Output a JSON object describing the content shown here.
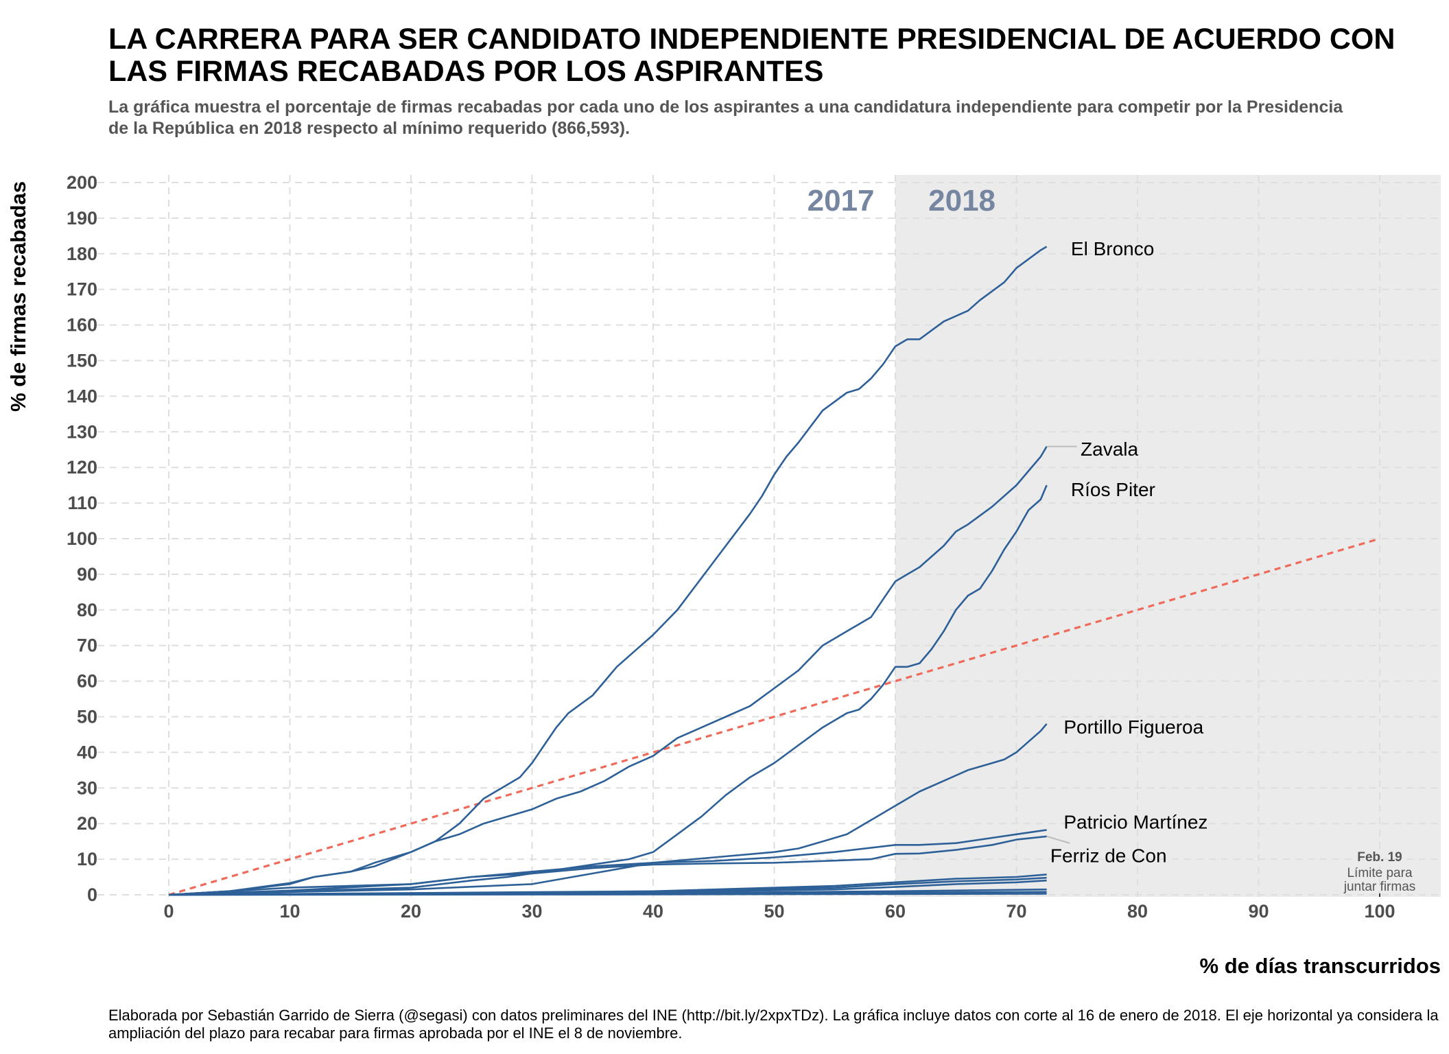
{
  "header": {
    "title": "LA CARRERA PARA SER CANDIDATO INDEPENDIENTE PRESIDENCIAL DE ACUERDO CON LAS FIRMAS RECABADAS POR LOS ASPIRANTES",
    "subtitle": "La gráfica muestra el porcentaje de firmas recabadas por cada uno de los aspirantes a una candidatura independiente para competir por la Presidencia de la República en 2018 respecto al mínimo requerido (866,593)."
  },
  "footer": {
    "caption": "Elaborada por Sebastián Garrido de Sierra (@segasi) con datos preliminares del INE (http://bit.ly/2xpxTDz). La gráfica incluye datos con corte al 16 de enero de 2018. El eje horizontal ya considera la ampliación del plazo para recabar para firmas aprobada por el INE el 8 de noviembre."
  },
  "colors": {
    "series_line": "#2e6098",
    "reference_line": "#ef6a5a",
    "shaded_region": "#ebebeb",
    "grid": "#dedede",
    "year_label": "#7686a0"
  },
  "chart_data": {
    "type": "line",
    "xlabel": "% de días transcurridos",
    "ylabel": "% de firmas recabadas",
    "xlim": [
      -5,
      105
    ],
    "ylim": [
      0,
      200
    ],
    "x_ticks": [
      0,
      10,
      20,
      30,
      40,
      50,
      60,
      70,
      80,
      90,
      100
    ],
    "y_ticks": [
      0,
      10,
      20,
      30,
      40,
      50,
      60,
      70,
      80,
      90,
      100,
      110,
      120,
      130,
      140,
      150,
      160,
      170,
      180,
      190,
      200
    ],
    "grid": true,
    "grid_style": "dashed",
    "shaded_region": {
      "x_from": 60,
      "x_to": 105
    },
    "period_labels": [
      {
        "text": "2017",
        "x": 55.5,
        "y": 195
      },
      {
        "text": "2018",
        "x": 65.5,
        "y": 195
      }
    ],
    "reference_line": {
      "points": [
        [
          0,
          0
        ],
        [
          100,
          100
        ]
      ],
      "style": "dashed"
    },
    "annotation": {
      "x": 100,
      "title": "Feb. 19",
      "lines": [
        "Límite para",
        "juntar firmas"
      ]
    },
    "series": [
      {
        "name": "El Bronco",
        "label_pos": [
          74.5,
          181.5
        ],
        "points": [
          [
            0,
            0
          ],
          [
            5,
            1
          ],
          [
            10,
            3.3
          ],
          [
            12,
            5
          ],
          [
            15,
            6.5
          ],
          [
            17,
            8
          ],
          [
            20,
            12
          ],
          [
            22,
            15
          ],
          [
            24,
            20
          ],
          [
            26,
            27
          ],
          [
            28,
            31
          ],
          [
            29,
            33
          ],
          [
            30,
            37
          ],
          [
            31,
            42
          ],
          [
            32,
            47
          ],
          [
            33,
            51
          ],
          [
            35,
            56
          ],
          [
            37,
            64
          ],
          [
            39,
            70
          ],
          [
            40,
            73
          ],
          [
            42,
            80
          ],
          [
            44,
            89
          ],
          [
            46,
            98
          ],
          [
            48,
            107
          ],
          [
            49,
            112
          ],
          [
            50,
            118
          ],
          [
            51,
            123
          ],
          [
            52,
            127
          ],
          [
            54,
            136
          ],
          [
            56,
            141
          ],
          [
            57,
            142
          ],
          [
            58,
            145
          ],
          [
            59,
            149
          ],
          [
            60,
            154
          ],
          [
            61,
            156
          ],
          [
            62,
            156
          ],
          [
            64,
            161
          ],
          [
            66,
            164
          ],
          [
            67,
            167
          ],
          [
            69,
            172
          ],
          [
            70,
            176
          ],
          [
            72,
            181
          ],
          [
            72.5,
            182
          ]
        ]
      },
      {
        "name": "Zavala",
        "label_pos": [
          75.3,
          125.2
        ],
        "label_leader": [
          [
            72.5,
            125.9
          ],
          [
            75,
            125.9
          ]
        ],
        "points": [
          [
            0,
            0
          ],
          [
            5,
            1
          ],
          [
            10,
            3
          ],
          [
            12,
            5
          ],
          [
            15,
            6.5
          ],
          [
            17,
            9
          ],
          [
            20,
            12
          ],
          [
            22,
            15
          ],
          [
            24,
            17
          ],
          [
            26,
            20
          ],
          [
            28,
            22
          ],
          [
            30,
            24
          ],
          [
            32,
            27
          ],
          [
            34,
            29
          ],
          [
            36,
            32
          ],
          [
            38,
            36
          ],
          [
            40,
            39
          ],
          [
            42,
            44
          ],
          [
            44,
            47
          ],
          [
            46,
            50
          ],
          [
            48,
            53
          ],
          [
            50,
            58
          ],
          [
            52,
            63
          ],
          [
            54,
            70
          ],
          [
            56,
            74
          ],
          [
            57,
            76
          ],
          [
            58,
            78
          ],
          [
            59,
            83
          ],
          [
            60,
            88
          ],
          [
            61,
            90
          ],
          [
            62,
            92
          ],
          [
            64,
            98
          ],
          [
            65,
            102
          ],
          [
            66,
            104
          ],
          [
            68,
            109
          ],
          [
            70,
            115
          ],
          [
            71,
            119
          ],
          [
            72,
            123
          ],
          [
            72.5,
            125.9
          ]
        ]
      },
      {
        "name": "Ríos Piter",
        "label_pos": [
          74.5,
          113.9
        ],
        "points": [
          [
            0,
            0
          ],
          [
            10,
            1
          ],
          [
            20,
            2
          ],
          [
            25,
            4
          ],
          [
            28,
            5
          ],
          [
            30,
            6
          ],
          [
            32,
            7
          ],
          [
            34,
            8
          ],
          [
            36,
            9
          ],
          [
            38,
            10
          ],
          [
            40,
            12
          ],
          [
            42,
            17
          ],
          [
            44,
            22
          ],
          [
            46,
            28
          ],
          [
            48,
            33
          ],
          [
            50,
            37
          ],
          [
            52,
            42
          ],
          [
            54,
            47
          ],
          [
            56,
            51
          ],
          [
            57,
            52
          ],
          [
            58,
            55
          ],
          [
            59,
            59
          ],
          [
            60,
            64
          ],
          [
            61,
            64
          ],
          [
            62,
            65
          ],
          [
            63,
            69
          ],
          [
            64,
            74
          ],
          [
            65,
            80
          ],
          [
            66,
            84
          ],
          [
            67,
            86
          ],
          [
            68,
            91
          ],
          [
            69,
            97
          ],
          [
            70,
            102
          ],
          [
            71,
            108
          ],
          [
            72,
            111
          ],
          [
            72.5,
            115
          ]
        ]
      },
      {
        "name": "Portillo Figueroa",
        "label_pos": [
          73.9,
          47.2
        ],
        "points": [
          [
            0,
            0
          ],
          [
            10,
            0.8
          ],
          [
            20,
            1.5
          ],
          [
            30,
            3
          ],
          [
            35,
            6
          ],
          [
            40,
            9
          ],
          [
            45,
            10.5
          ],
          [
            50,
            12
          ],
          [
            52,
            13
          ],
          [
            54,
            15
          ],
          [
            56,
            17
          ],
          [
            58,
            21
          ],
          [
            60,
            25
          ],
          [
            62,
            29
          ],
          [
            64,
            32
          ],
          [
            66,
            35
          ],
          [
            68,
            37
          ],
          [
            69,
            38
          ],
          [
            70,
            40
          ],
          [
            71,
            43
          ],
          [
            72,
            46
          ],
          [
            72.5,
            48
          ]
        ]
      },
      {
        "name": "Patricio Martínez",
        "label_pos": [
          73.9,
          20.5
        ],
        "points": [
          [
            0,
            0
          ],
          [
            10,
            1.2
          ],
          [
            20,
            3
          ],
          [
            25,
            5
          ],
          [
            30,
            6.5
          ],
          [
            35,
            8
          ],
          [
            40,
            9
          ],
          [
            45,
            9.5
          ],
          [
            50,
            10.5
          ],
          [
            55,
            12
          ],
          [
            60,
            14
          ],
          [
            62,
            14
          ],
          [
            65,
            14.5
          ],
          [
            68,
            16
          ],
          [
            70,
            17
          ],
          [
            72.5,
            18.2
          ]
        ]
      },
      {
        "name": "Ferriz de Con",
        "label_pos": [
          72.8,
          11.1
        ],
        "label_leader": [
          [
            72.5,
            16.4
          ],
          [
            74.4,
            14.5
          ]
        ],
        "points": [
          [
            0,
            0
          ],
          [
            10,
            2
          ],
          [
            20,
            3
          ],
          [
            25,
            5
          ],
          [
            30,
            6
          ],
          [
            35,
            7.5
          ],
          [
            40,
            8.5
          ],
          [
            45,
            8.8
          ],
          [
            50,
            9
          ],
          [
            55,
            9.6
          ],
          [
            58,
            10
          ],
          [
            60,
            11.5
          ],
          [
            62,
            11.6
          ],
          [
            65,
            12.6
          ],
          [
            68,
            14
          ],
          [
            70,
            15.5
          ],
          [
            72.5,
            16.4
          ]
        ]
      },
      {
        "name": "",
        "points": [
          [
            0,
            0
          ],
          [
            20,
            0.5
          ],
          [
            40,
            1
          ],
          [
            55,
            2.5
          ],
          [
            60,
            3.5
          ],
          [
            65,
            4.5
          ],
          [
            70,
            5
          ],
          [
            72.5,
            5.7
          ]
        ]
      },
      {
        "name": "",
        "points": [
          [
            0,
            0
          ],
          [
            20,
            0.4
          ],
          [
            40,
            0.9
          ],
          [
            55,
            2
          ],
          [
            60,
            3
          ],
          [
            65,
            3.8
          ],
          [
            70,
            4.3
          ],
          [
            72.5,
            4.8
          ]
        ]
      },
      {
        "name": "",
        "points": [
          [
            0,
            0
          ],
          [
            20,
            0.3
          ],
          [
            40,
            0.7
          ],
          [
            55,
            1.5
          ],
          [
            60,
            2.2
          ],
          [
            65,
            3
          ],
          [
            70,
            3.5
          ],
          [
            72.5,
            4
          ]
        ]
      },
      {
        "name": "",
        "points": [
          [
            0,
            0
          ],
          [
            20,
            0.2
          ],
          [
            40,
            0.4
          ],
          [
            60,
            1
          ],
          [
            72.5,
            1.5
          ]
        ]
      },
      {
        "name": "",
        "points": [
          [
            0,
            0
          ],
          [
            30,
            0.2
          ],
          [
            50,
            0.4
          ],
          [
            72.5,
            0.8
          ]
        ]
      },
      {
        "name": "",
        "points": [
          [
            0,
            0
          ],
          [
            40,
            0.1
          ],
          [
            72.5,
            0.3
          ]
        ]
      }
    ]
  }
}
